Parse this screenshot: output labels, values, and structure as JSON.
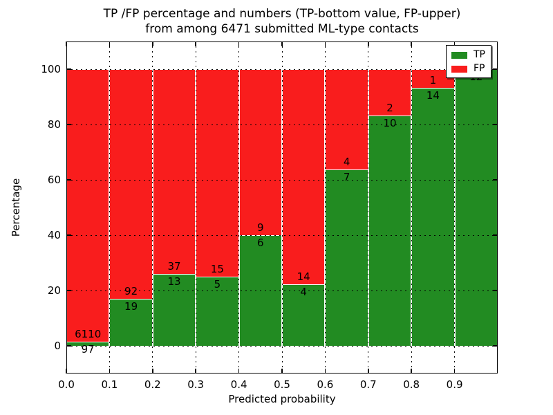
{
  "figure": {
    "title_line1": "TP /FP percentage and numbers (TP-bottom value, FP-upper)",
    "title_line2": "from among 6471 submitted ML-type contacts",
    "xlabel": "Predicted probability",
    "ylabel": "Percentage"
  },
  "legend": {
    "position": "upper right",
    "items": [
      {
        "label": "TP",
        "color": "#228b22"
      },
      {
        "label": "FP",
        "color": "#f91d1d"
      }
    ]
  },
  "chart_data": {
    "type": "bar",
    "stacked": true,
    "normalized": "each bar sums to 100%",
    "title": "TP /FP percentage and numbers (TP-bottom value, FP-upper) from among 6471 submitted ML-type contacts",
    "xlabel": "Predicted probability",
    "ylabel": "Percentage",
    "total_contacts": 6471,
    "xlim": [
      0.0,
      1.0
    ],
    "ylim": [
      -10,
      110
    ],
    "grid": "dotted, black, drawn above bars",
    "legend_position": "upper right",
    "bins": [
      [
        0.0,
        0.1
      ],
      [
        0.1,
        0.2
      ],
      [
        0.2,
        0.3
      ],
      [
        0.3,
        0.4
      ],
      [
        0.4,
        0.5
      ],
      [
        0.5,
        0.6
      ],
      [
        0.6,
        0.7
      ],
      [
        0.7,
        0.8
      ],
      [
        0.8,
        0.9
      ],
      [
        0.9,
        1.0
      ]
    ],
    "x_tick_labels": [
      "0.0",
      "0.1",
      "0.2",
      "0.3",
      "0.4",
      "0.5",
      "0.6",
      "0.7",
      "0.8",
      "0.9"
    ],
    "y_ticks": [
      0,
      20,
      40,
      60,
      80,
      100
    ],
    "series": [
      {
        "name": "TP",
        "color": "#228b22",
        "counts": [
          97,
          19,
          13,
          5,
          6,
          4,
          7,
          10,
          14,
          12
        ],
        "percent": [
          1.56,
          17.12,
          26.0,
          25.0,
          40.0,
          22.22,
          63.64,
          83.33,
          93.33,
          100.0
        ]
      },
      {
        "name": "FP",
        "color": "#f91d1d",
        "counts": [
          6110,
          92,
          37,
          15,
          9,
          14,
          4,
          2,
          1,
          0
        ],
        "percent": [
          98.44,
          82.88,
          74.0,
          75.0,
          60.0,
          77.78,
          36.36,
          16.67,
          6.67,
          0.0
        ]
      }
    ],
    "tp_bar_labels": [
      "97",
      "19",
      "13",
      "5",
      "6",
      "4",
      "7",
      "10",
      "14",
      "12"
    ],
    "fp_bar_labels": [
      "6110",
      "92",
      "37",
      "15",
      "9",
      "14",
      "4",
      "2",
      "1",
      ""
    ]
  }
}
